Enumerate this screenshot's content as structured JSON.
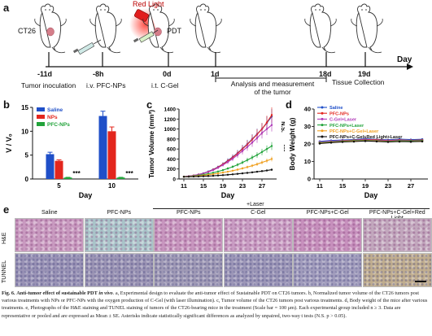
{
  "panels": {
    "a": {
      "letter": "a",
      "tumor_label": "CT26",
      "red_light_label": "Red Light",
      "pdt_label": "PDT",
      "axis_label": "Day",
      "timepoints": [
        {
          "day": "-11d",
          "event": "Tumor inoculation"
        },
        {
          "day": "-8h",
          "event": "i.v. PFC-NPs"
        },
        {
          "day": "0d",
          "event": "i.t. C-Gel"
        },
        {
          "day": "1d",
          "event": ""
        },
        {
          "day": "18d",
          "event": ""
        },
        {
          "day": "19d",
          "event": "Tissue Collection"
        }
      ],
      "analysis_label_1": "Analysis and measurement",
      "analysis_label_2": "of the tumor"
    },
    "e": {
      "letter": "e",
      "laser_label": "+Laser",
      "columns": [
        "Saline",
        "PFC-NPs",
        "PFC-NPs",
        "C-Gel",
        "PFC-NPs+C-Gel",
        "PFC-NPs+C-Gel+Red Light"
      ],
      "rows": [
        "H&E",
        "TUNNEL"
      ],
      "he_colors": [
        "#c99ac0",
        "#a9c4c9",
        "#c896bf",
        "#c99cc3",
        "#c790bd",
        "#c2a7bd"
      ],
      "tunel_colors": [
        "#9a93b6",
        "#9c95b5",
        "#a09ab6",
        "#9d97b8",
        "#a29dbd",
        "#c1ae8f"
      ]
    }
  },
  "chart_data": [
    {
      "panel": "b",
      "type": "bar",
      "ylabel": "V / V₀",
      "xlabel": "Day",
      "categories": [
        "5",
        "10"
      ],
      "ylim": [
        0,
        15
      ],
      "yticks": [
        0,
        5,
        10,
        15
      ],
      "legend_position": "top-left",
      "significance": [
        "***",
        "***"
      ],
      "series": [
        {
          "name": "Saline",
          "color": "#1f4fc8",
          "values": [
            5.2,
            13.2
          ],
          "errors": [
            0.4,
            1.0
          ]
        },
        {
          "name": "NPs",
          "color": "#e3261d",
          "values": [
            3.8,
            10.0
          ],
          "errors": [
            0.2,
            0.9
          ]
        },
        {
          "name": "PFC-NPs",
          "color": "#21a33a",
          "values": [
            0.3,
            0.3
          ],
          "errors": [
            0.05,
            0.05
          ]
        }
      ]
    },
    {
      "panel": "c",
      "type": "line",
      "ylabel": "Tumor Volume (mm³)",
      "xlabel": "Day",
      "ylim": [
        0,
        1400
      ],
      "yticks": [
        0,
        200,
        400,
        600,
        800,
        1000,
        1200,
        1400
      ],
      "xlim": [
        10,
        30
      ],
      "xticks": [
        11,
        15,
        19,
        23,
        27
      ],
      "x": [
        11,
        12,
        13,
        14,
        15,
        16,
        17,
        18,
        19,
        20,
        21,
        22,
        23,
        24,
        25,
        26,
        27,
        28,
        29
      ],
      "annotations": [
        "N.S.",
        "***"
      ],
      "series": [
        {
          "name": "Saline",
          "color": "#1f4fc8",
          "values": [
            45,
            55,
            70,
            90,
            115,
            150,
            190,
            240,
            300,
            370,
            440,
            520,
            610,
            700,
            800,
            900,
            1000,
            1120,
            1250
          ]
        },
        {
          "name": "PFC-NPs",
          "color": "#e3261d",
          "values": [
            45,
            55,
            70,
            90,
            110,
            145,
            185,
            235,
            295,
            360,
            430,
            510,
            600,
            690,
            790,
            890,
            1000,
            1130,
            1280
          ]
        },
        {
          "name": "C-Gel+Laser",
          "color": "#b03ab8",
          "values": [
            45,
            55,
            68,
            88,
            110,
            140,
            178,
            225,
            280,
            340,
            405,
            480,
            560,
            640,
            730,
            820,
            920,
            1000,
            1080
          ]
        },
        {
          "name": "PFC-NPs+Laser",
          "color": "#21a33a",
          "values": [
            45,
            50,
            60,
            72,
            88,
            105,
            125,
            150,
            178,
            210,
            245,
            285,
            330,
            380,
            430,
            480,
            540,
            600,
            660
          ]
        },
        {
          "name": "PFC-NPs+C-Gel+Laser",
          "color": "#f0a020",
          "values": [
            45,
            48,
            54,
            62,
            72,
            84,
            97,
            112,
            128,
            146,
            166,
            188,
            212,
            238,
            266,
            296,
            330,
            365,
            400
          ]
        },
        {
          "name": "PFC-NPs+C-Gel+Red Light+Laser",
          "color": "#111111",
          "values": [
            45,
            46,
            48,
            51,
            55,
            59,
            64,
            70,
            77,
            85,
            93,
            102,
            112,
            122,
            133,
            145,
            157,
            170,
            185
          ]
        }
      ]
    },
    {
      "panel": "d",
      "type": "line",
      "ylabel": "Body Weight (g)",
      "xlabel": "Day",
      "ylim": [
        0,
        40
      ],
      "yticks": [
        0,
        10,
        20,
        30,
        40
      ],
      "xlim": [
        10,
        30
      ],
      "xticks": [
        11,
        15,
        19,
        23,
        27
      ],
      "x": [
        11,
        13,
        15,
        17,
        19,
        21,
        23,
        25,
        27,
        29
      ],
      "legend_position": "top",
      "series": [
        {
          "name": "Saline",
          "color": "#1f4fc8",
          "values": [
            21.5,
            22.0,
            22.3,
            22.5,
            23.0,
            22.6,
            22.4,
            22.8,
            22.5,
            22.7
          ]
        },
        {
          "name": "PFC-NPs",
          "color": "#e3261d",
          "values": [
            21.0,
            21.5,
            22.0,
            22.2,
            22.6,
            22.4,
            22.0,
            22.3,
            22.1,
            22.3
          ]
        },
        {
          "name": "C-Gel+Laser",
          "color": "#b03ab8",
          "values": [
            21.2,
            21.6,
            21.9,
            22.0,
            22.4,
            22.1,
            21.8,
            22.0,
            21.9,
            22.0
          ]
        },
        {
          "name": "PFC-NPs+Laser",
          "color": "#21a33a",
          "values": [
            20.8,
            21.2,
            21.6,
            21.9,
            22.1,
            21.9,
            21.5,
            21.8,
            21.7,
            21.9
          ]
        },
        {
          "name": "PFC-NPs+C-Gel+Laser",
          "color": "#f0a020",
          "values": [
            20.5,
            21.0,
            21.4,
            21.6,
            21.9,
            21.7,
            21.3,
            21.5,
            21.4,
            21.6
          ]
        },
        {
          "name": "PFC-NPs+C-Gel+Red Light+Laser",
          "color": "#111111",
          "values": [
            20.3,
            20.8,
            21.2,
            21.4,
            21.7,
            21.5,
            21.2,
            21.4,
            21.3,
            21.5
          ]
        }
      ]
    }
  ],
  "caption": {
    "lead": "Fig. 6.",
    "title": "Anti-tumor effect of sustainable PDT",
    "title_italic": "in vivo",
    "body": ". a, Experimental design to evaluate the anti-tumor effect of Sustainable PDT on CT26 tumors. b, Normalized tumor volume of the CT26 tumors post various treatments with NPs or PFC-NPs with the oxygen production of C-Gel (with laser illumination). c, Tumor volume of the CT26 tumors post various treatments. d, Body weight of the mice after various treatments. e, Photographs of the H&E staining and TUNEL staining of tumors of the CT26-bearing mice in the treatment (Scale bar = 100 μm). Each experimental group included n ≥ 3. Data are representative or pooled and are expressed as Mean ± SE. Asterisks indicate statistically significant differences as analyzed by unpaired, two-way t tests (N.S. p > 0.05)."
  }
}
